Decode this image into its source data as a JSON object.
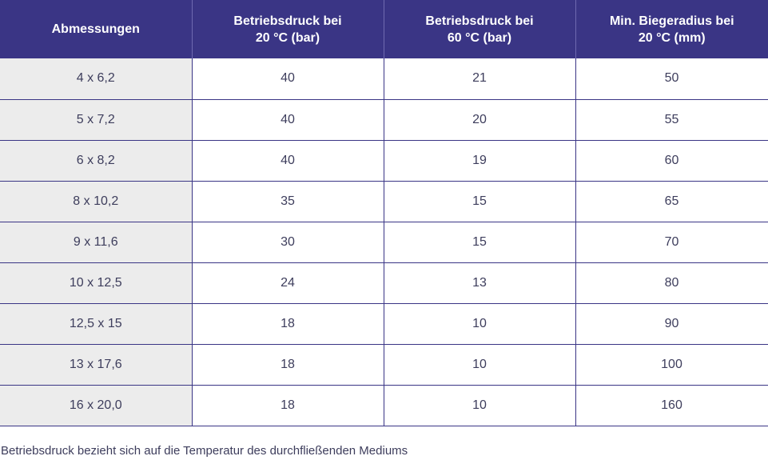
{
  "table": {
    "headers": [
      "Abmessungen",
      "Betriebsdruck bei\n20 °C (bar)",
      "Betriebsdruck bei\n60 °C (bar)",
      "Min. Biegeradius bei\n20 °C (mm)"
    ],
    "rows": [
      [
        "4 x 6,2",
        "40",
        "21",
        "50"
      ],
      [
        "5 x 7,2",
        "40",
        "20",
        "55"
      ],
      [
        "6 x 8,2",
        "40",
        "19",
        "60"
      ],
      [
        "8 x 10,2",
        "35",
        "15",
        "65"
      ],
      [
        "9 x 11,6",
        "30",
        "15",
        "70"
      ],
      [
        "10 x 12,5",
        "24",
        "13",
        "80"
      ],
      [
        "12,5 x 15",
        "18",
        "10",
        "90"
      ],
      [
        "13 x 17,6",
        "18",
        "10",
        "100"
      ],
      [
        "16 x 20,0",
        "18",
        "10",
        "160"
      ]
    ]
  },
  "footnote": "Betriebsdruck bezieht sich auf die Temperatur des durchfließenden Mediums",
  "colors": {
    "header_bg": "#3a3585",
    "header_text": "#ffffff",
    "first_col_bg": "#ececec",
    "border": "#3a3585",
    "body_text": "#3d3d5c"
  }
}
